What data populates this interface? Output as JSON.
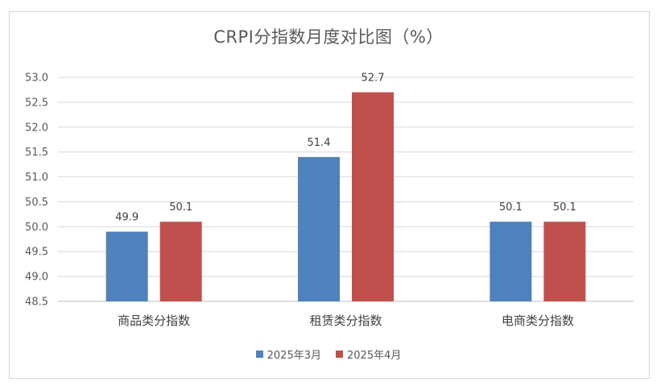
{
  "chart_data": {
    "type": "bar",
    "title": "CRPI分指数月度对比图（%）",
    "categories": [
      "商品类分指数",
      "租赁类分指数",
      "电商类分指数"
    ],
    "series": [
      {
        "name": "2025年3月",
        "values": [
          49.9,
          51.4,
          50.1
        ],
        "labels": [
          "49.9",
          "51.4",
          "50.1"
        ],
        "color": "#4f81bd"
      },
      {
        "name": "2025年4月",
        "values": [
          50.1,
          52.7,
          50.1
        ],
        "labels": [
          "50.1",
          "52.7",
          "50.1"
        ],
        "color": "#c0504d"
      }
    ],
    "ylim": [
      48.5,
      53.0
    ],
    "yticks": [
      "48.5",
      "49.0",
      "49.5",
      "50.0",
      "50.5",
      "51.0",
      "51.5",
      "52.0",
      "52.5",
      "53.0"
    ],
    "grid": true,
    "legend_position": "bottom"
  }
}
